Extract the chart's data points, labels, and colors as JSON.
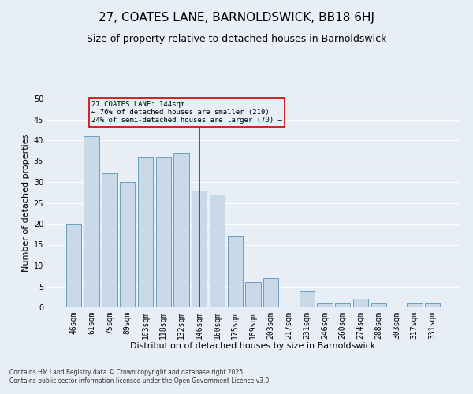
{
  "title": "27, COATES LANE, BARNOLDSWICK, BB18 6HJ",
  "subtitle": "Size of property relative to detached houses in Barnoldswick",
  "xlabel": "Distribution of detached houses by size in Barnoldswick",
  "ylabel": "Number of detached properties",
  "footer_line1": "Contains HM Land Registry data © Crown copyright and database right 2025.",
  "footer_line2": "Contains public sector information licensed under the Open Government Licence v3.0.",
  "categories": [
    "46sqm",
    "61sqm",
    "75sqm",
    "89sqm",
    "103sqm",
    "118sqm",
    "132sqm",
    "146sqm",
    "160sqm",
    "175sqm",
    "189sqm",
    "203sqm",
    "217sqm",
    "231sqm",
    "246sqm",
    "260sqm",
    "274sqm",
    "288sqm",
    "303sqm",
    "317sqm",
    "331sqm"
  ],
  "values": [
    20,
    41,
    32,
    30,
    36,
    36,
    37,
    28,
    27,
    17,
    6,
    7,
    0,
    4,
    1,
    1,
    2,
    1,
    0,
    1,
    1
  ],
  "bar_color": "#c9d9e8",
  "bar_edge_color": "#6a9fc0",
  "highlight_index": 7,
  "highlight_line_color": "#cc0000",
  "annotation_text": "27 COATES LANE: 144sqm\n← 76% of detached houses are smaller (219)\n24% of semi-detached houses are larger (70) →",
  "annotation_box_color": "#cc0000",
  "ylim": [
    0,
    50
  ],
  "yticks": [
    0,
    5,
    10,
    15,
    20,
    25,
    30,
    35,
    40,
    45,
    50
  ],
  "background_color": "#e8eef5",
  "grid_color": "#ffffff",
  "title_fontsize": 11,
  "subtitle_fontsize": 9,
  "axis_fontsize": 8,
  "tick_fontsize": 7,
  "footer_fontsize": 5.5
}
